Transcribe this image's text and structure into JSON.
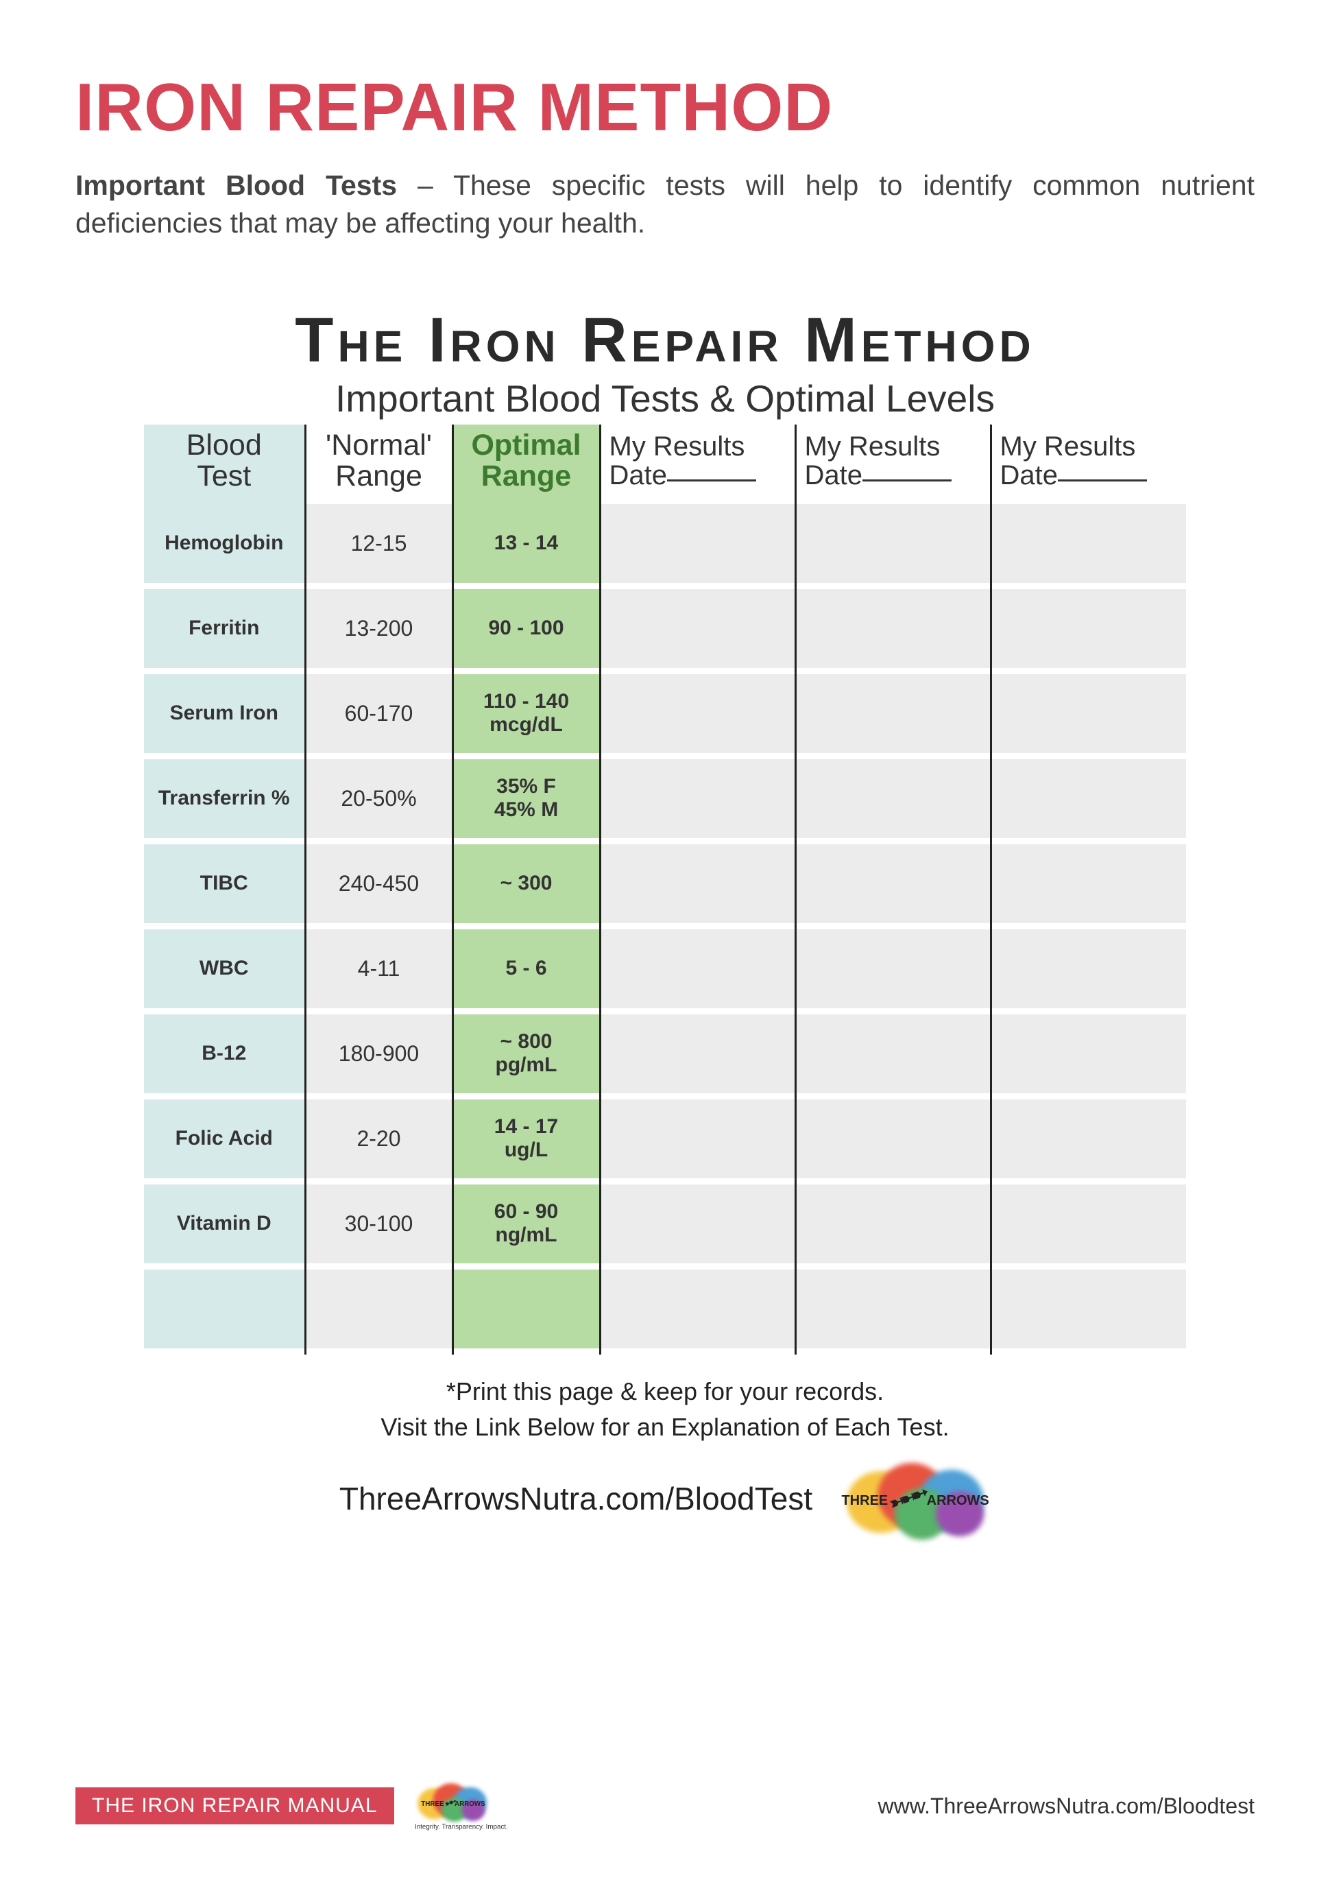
{
  "page_title": "IRON REPAIR METHOD",
  "intro_bold": "Important Blood Tests",
  "intro_rest": " – These specific tests will help to identify common nutrient deficiencies that may be affecting your health.",
  "chart": {
    "title": "The Iron Repair Method",
    "subtitle": "Important Blood Tests & Optimal Levels",
    "columns": {
      "test": "Blood Test",
      "normal": "'Normal' Range",
      "optimal": "Optimal Range",
      "results_prefix": "My Results",
      "results_date_label": "Date"
    },
    "colors": {
      "title": "#d64556",
      "test_col_bg": "#d7eaea",
      "optimal_col_bg": "#b7dca3",
      "optimal_text": "#3c7a2f",
      "alt_row_bg": "#ececec",
      "border": "#222222"
    },
    "rows": [
      {
        "test": "Hemoglobin",
        "normal": "12-15",
        "optimal": "13 - 14"
      },
      {
        "test": "Ferritin",
        "normal": "13-200",
        "optimal": "90 - 100"
      },
      {
        "test": "Serum Iron",
        "normal": "60-170",
        "optimal": "110 - 140\nmcg/dL"
      },
      {
        "test": "Transferrin %",
        "normal": "20-50%",
        "optimal": "35% F\n45% M"
      },
      {
        "test": "TIBC",
        "normal": "240-450",
        "optimal": "~ 300"
      },
      {
        "test": "WBC",
        "normal": "4-11",
        "optimal": "5 - 6"
      },
      {
        "test": "B-12",
        "normal": "180-900",
        "optimal": "~  800\npg/mL"
      },
      {
        "test": "Folic Acid",
        "normal": "2-20",
        "optimal": "14 - 17\nug/L"
      },
      {
        "test": "Vitamin D",
        "normal": "30-100",
        "optimal": "60 - 90\nng/mL"
      }
    ]
  },
  "after_table_line1": "*Print this page & keep for your records.",
  "after_table_line2": "Visit the Link Below for an Explanation of Each Test.",
  "link_text": "ThreeArrowsNutra.com/BloodTest",
  "logo_text_1": "THREE",
  "logo_text_2": "ARROWS",
  "footer": {
    "badge": "THE IRON REPAIR MANUAL",
    "tagline": "Integrity. Transparency. Impact.",
    "url": "www.ThreeArrowsNutra.com/Bloodtest"
  }
}
